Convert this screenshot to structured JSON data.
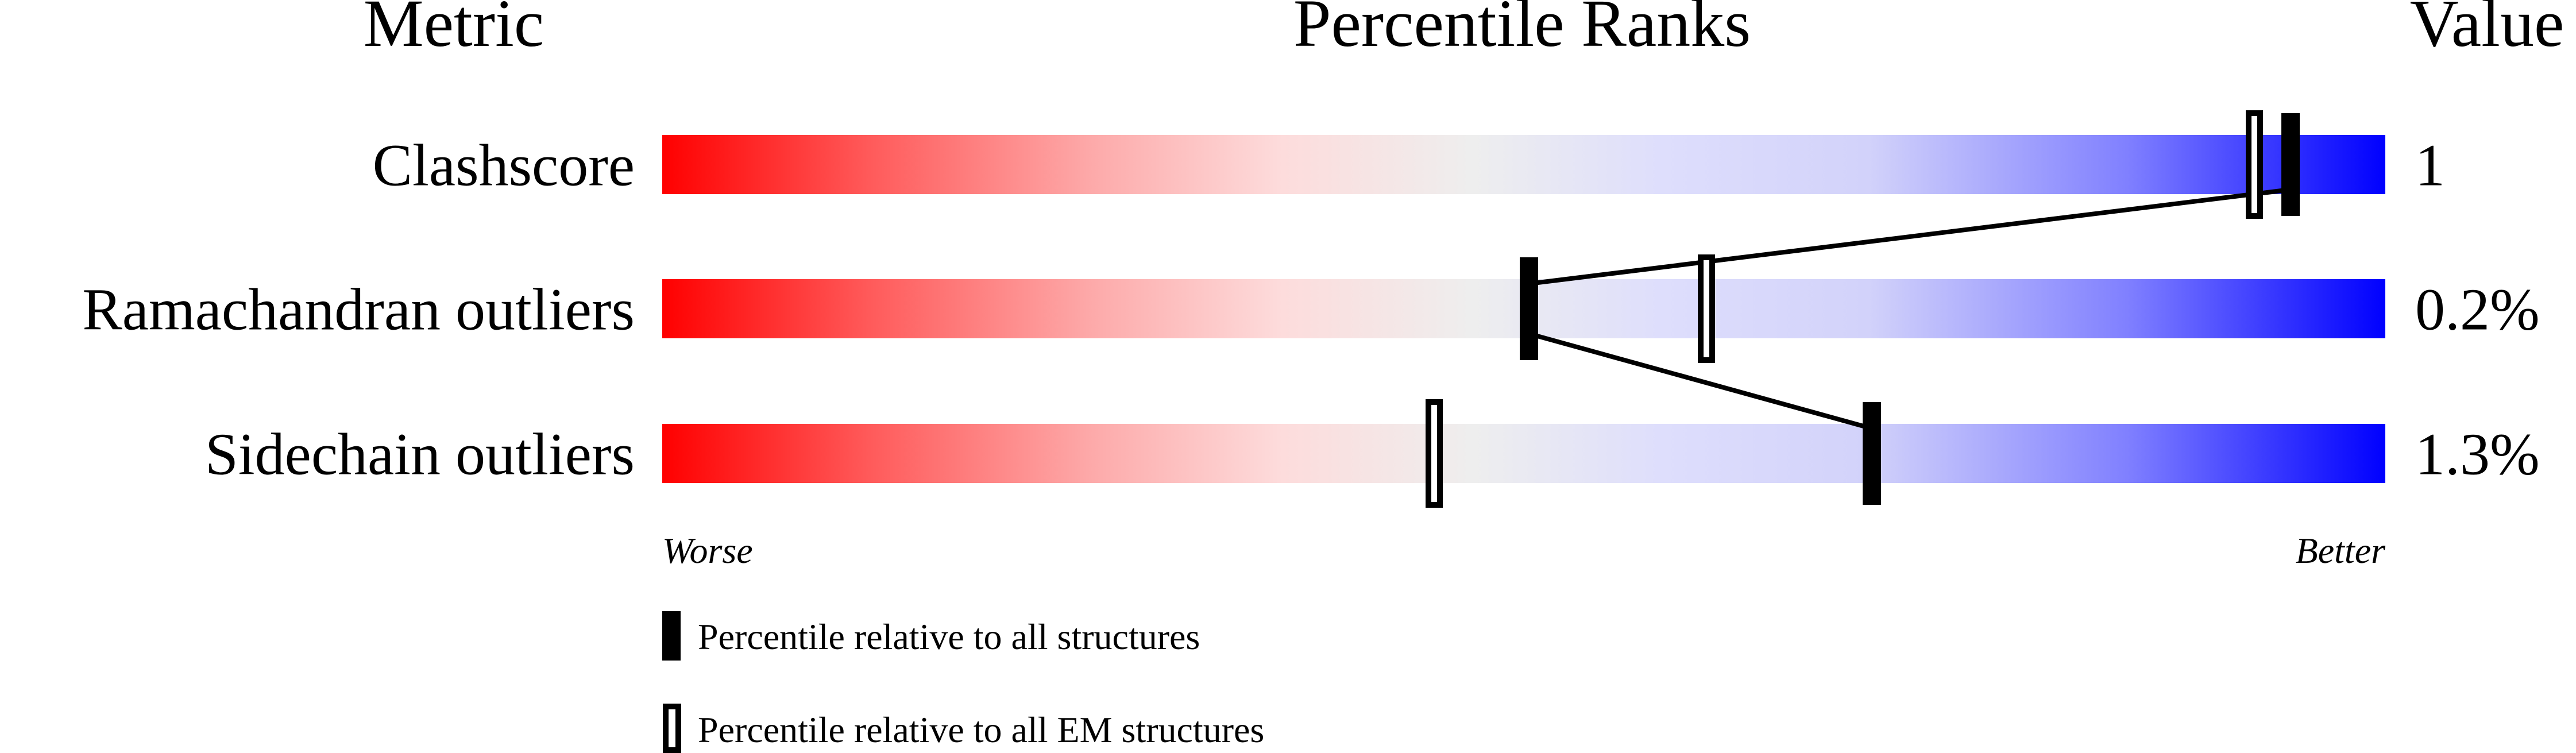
{
  "chart_data": {
    "type": "percentile-ranks",
    "headers": {
      "metric": "Metric",
      "title": "Percentile Ranks",
      "value": "Value"
    },
    "axis": {
      "left": "Worse",
      "right": "Better",
      "range": [
        0,
        100
      ]
    },
    "metrics": [
      {
        "name": "Clashscore",
        "value": "1",
        "percentile_all": 94.5,
        "percentile_em": 92.4
      },
      {
        "name": "Ramachandran outliers",
        "value": "0.2%",
        "percentile_all": 50.3,
        "percentile_em": 60.6
      },
      {
        "name": "Sidechain outliers",
        "value": "1.3%",
        "percentile_all": 70.2,
        "percentile_em": 44.8
      }
    ],
    "legend": {
      "all": "Percentile relative to all structures",
      "em": "Percentile relative to all EM structures"
    },
    "colors": {
      "worse": "#ff0000",
      "middle": "#eeeeee",
      "better": "#0000ff",
      "marker": "#000000"
    }
  }
}
